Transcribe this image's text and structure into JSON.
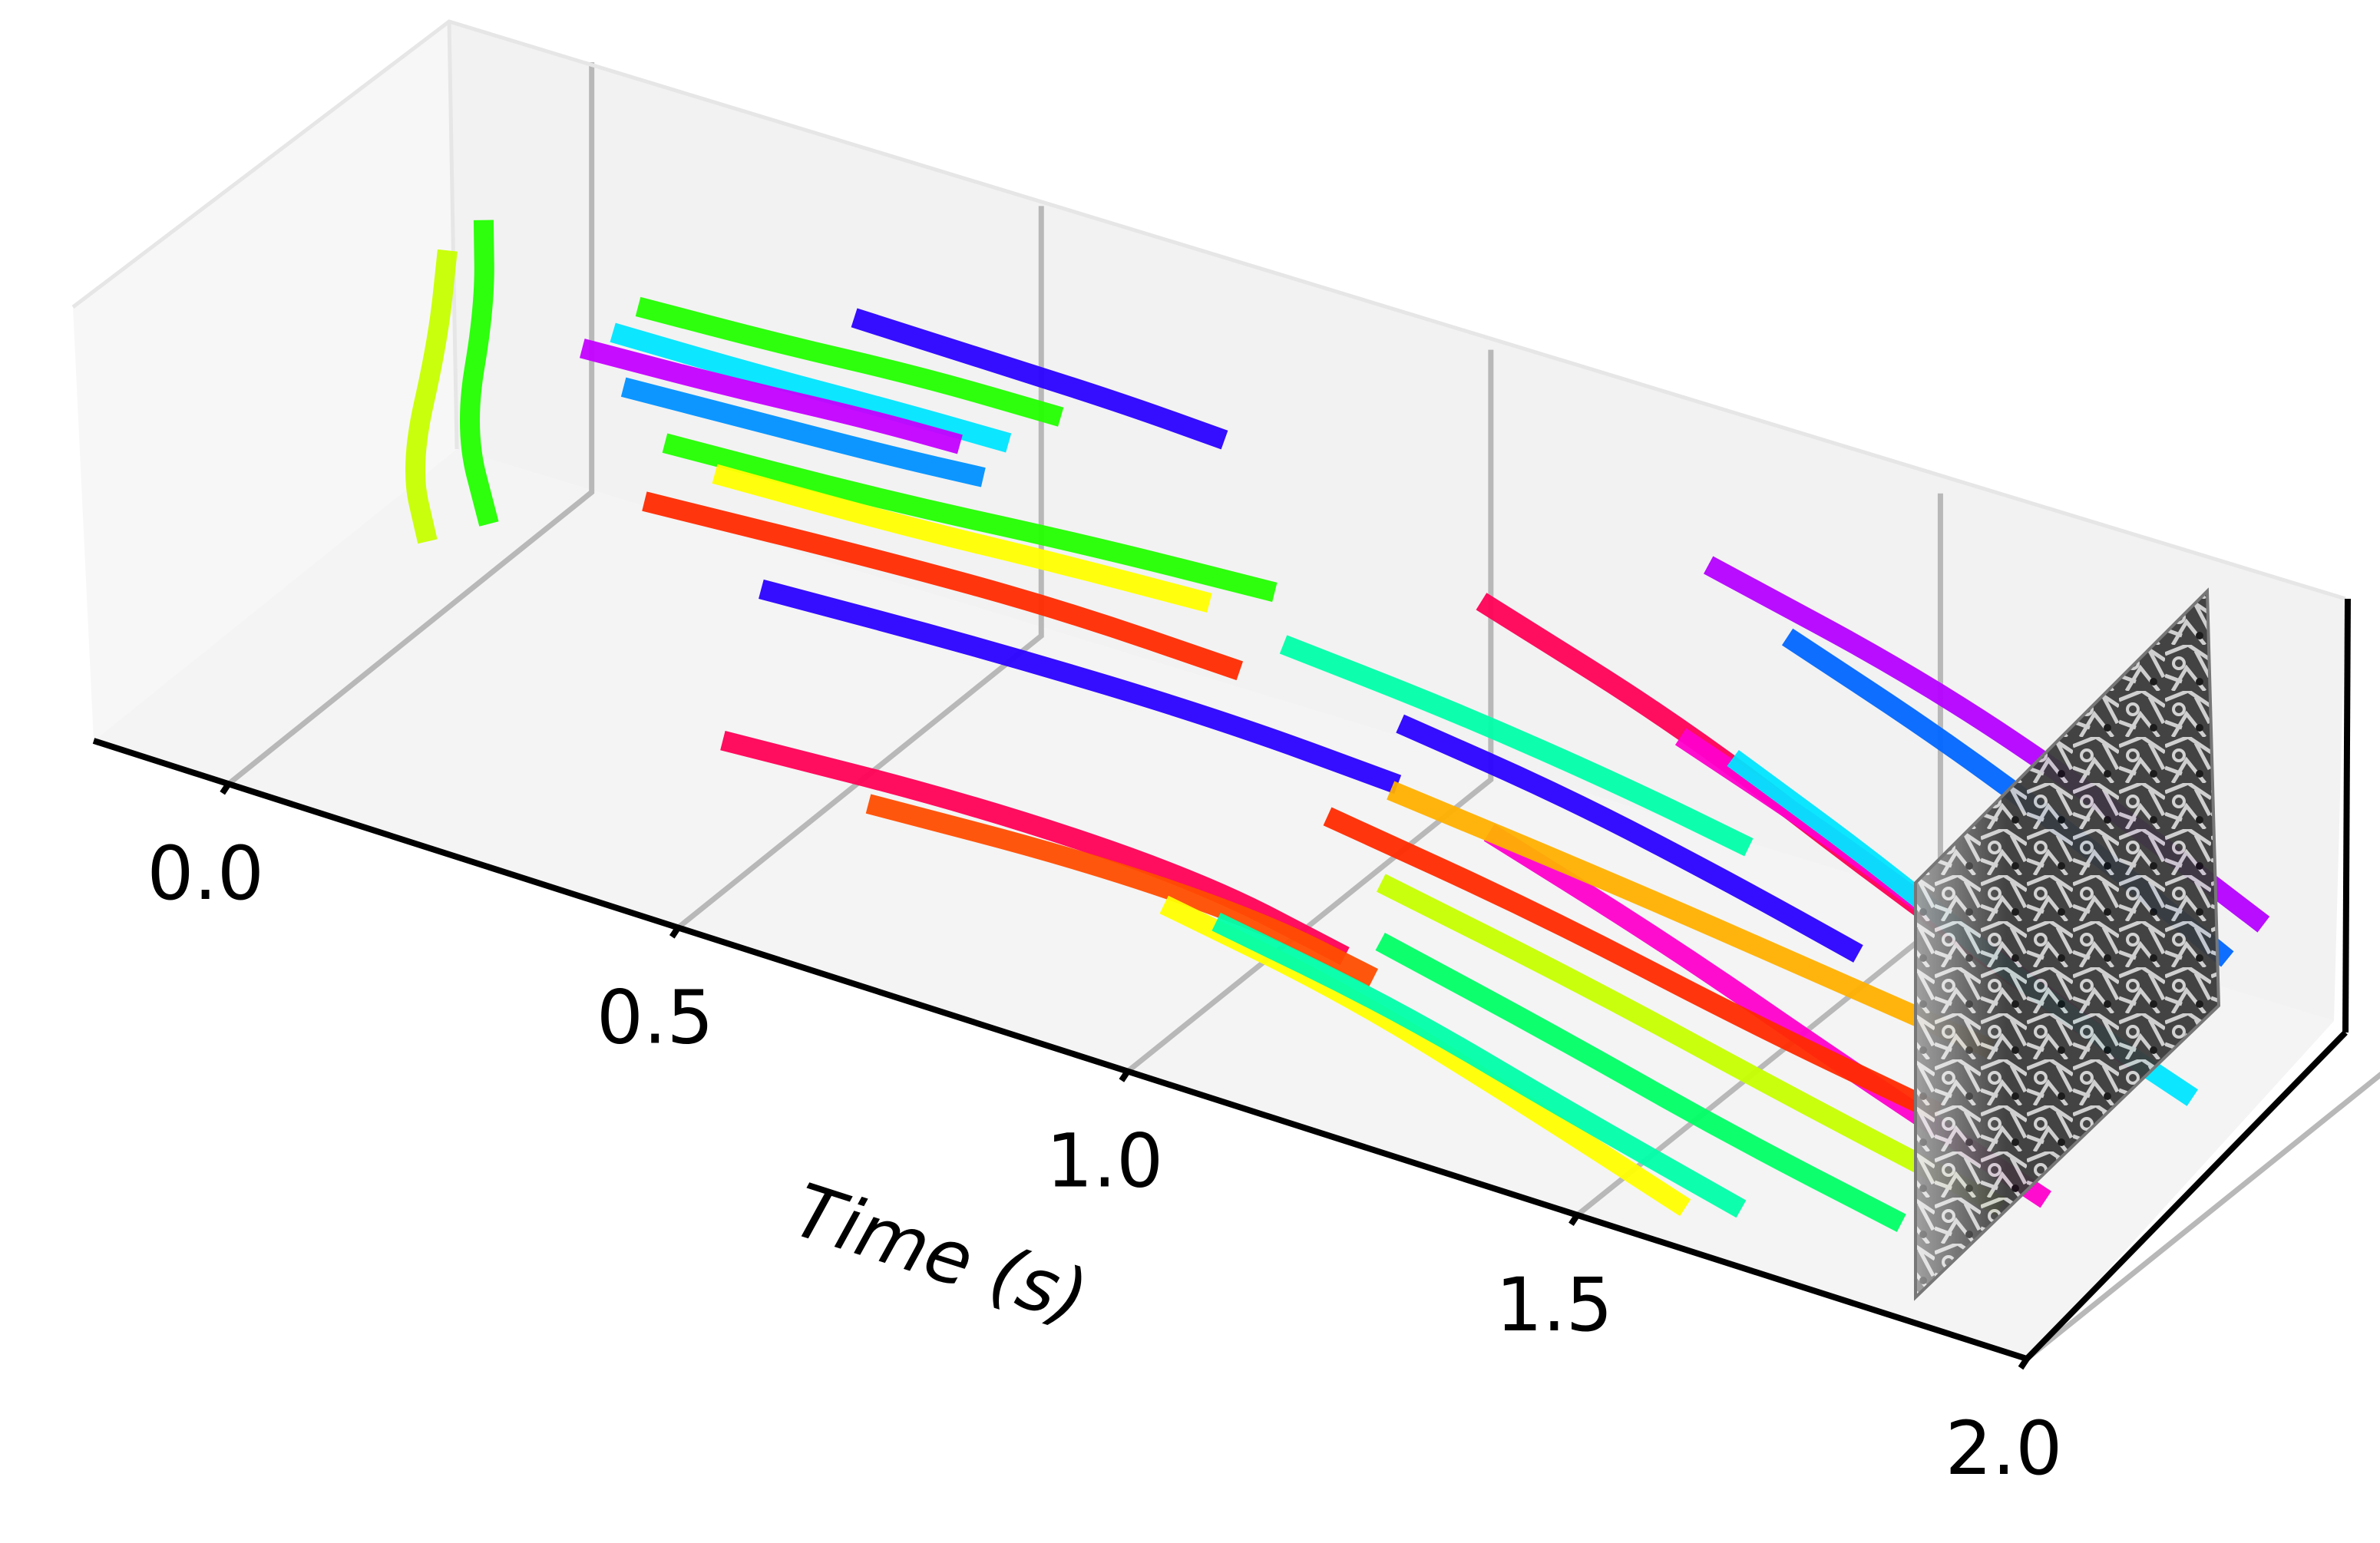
{
  "chart_data": {
    "type": "3d-line",
    "title": "",
    "xlabel": "Time (s)",
    "ylabel": "",
    "zlabel": "",
    "x_ticks": [
      "0.0",
      "0.5",
      "1.0",
      "1.5",
      "2.0"
    ],
    "xlim": [
      -0.15,
      2.0
    ],
    "ylim": [
      0,
      1
    ],
    "zlim": [
      0,
      1
    ],
    "grid": true,
    "legend": "none",
    "end_frame_image": "grayscale event frame at t = 2.0",
    "series": [
      {
        "color": "#c6ff00",
        "t": [
          -0.12,
          -0.05,
          0.02,
          0.08
        ],
        "y": [
          0.9,
          0.7,
          0.45,
          0.35
        ],
        "z": [
          0.55,
          0.52,
          0.45,
          0.38
        ]
      },
      {
        "color": "#22ff00",
        "t": [
          -0.1,
          -0.03,
          0.04,
          0.12
        ],
        "y": [
          0.95,
          0.78,
          0.55,
          0.42
        ],
        "z": [
          0.6,
          0.56,
          0.48,
          0.4
        ]
      },
      {
        "color": "#2a00ff",
        "t": [
          0.3,
          0.45,
          0.6,
          0.72
        ],
        "y": [
          0.98,
          0.98,
          0.97,
          0.96
        ],
        "z": [
          0.62,
          0.62,
          0.63,
          0.63
        ]
      },
      {
        "color": "#22ff00",
        "t": [
          0.1,
          0.25,
          0.4,
          0.55
        ],
        "y": [
          0.88,
          0.9,
          0.92,
          0.93
        ],
        "z": [
          0.58,
          0.58,
          0.59,
          0.59
        ]
      },
      {
        "color": "#00e5ff",
        "t": [
          0.08,
          0.22,
          0.38,
          0.5
        ],
        "y": [
          0.86,
          0.88,
          0.9,
          0.91
        ],
        "z": [
          0.52,
          0.51,
          0.51,
          0.51
        ]
      },
      {
        "color": "#c400ff",
        "t": [
          0.05,
          0.2,
          0.35,
          0.45
        ],
        "y": [
          0.85,
          0.87,
          0.89,
          0.9
        ],
        "z": [
          0.47,
          0.47,
          0.48,
          0.48
        ]
      },
      {
        "color": "#0090ff",
        "t": [
          0.1,
          0.24,
          0.38,
          0.48
        ],
        "y": [
          0.84,
          0.86,
          0.88,
          0.89
        ],
        "z": [
          0.42,
          0.42,
          0.42,
          0.43
        ]
      },
      {
        "color": "#22ff00",
        "t": [
          0.15,
          0.38,
          0.6,
          0.8
        ],
        "y": [
          0.83,
          0.85,
          0.88,
          0.9
        ],
        "z": [
          0.33,
          0.34,
          0.36,
          0.37
        ]
      },
      {
        "color": "#ffff00",
        "t": [
          0.25,
          0.45,
          0.62,
          0.78
        ],
        "y": [
          0.72,
          0.74,
          0.76,
          0.77
        ],
        "z": [
          0.4,
          0.4,
          0.41,
          0.42
        ]
      },
      {
        "color": "#ff2a00",
        "t": [
          0.2,
          0.45,
          0.65,
          0.85
        ],
        "y": [
          0.65,
          0.67,
          0.68,
          0.68
        ],
        "z": [
          0.35,
          0.37,
          0.38,
          0.37
        ]
      },
      {
        "color": "#2a00ff",
        "t": [
          0.35,
          0.6,
          0.85,
          1.05
        ],
        "y": [
          0.6,
          0.62,
          0.63,
          0.62
        ],
        "z": [
          0.28,
          0.29,
          0.29,
          0.28
        ]
      },
      {
        "color": "#ff0055",
        "t": [
          0.38,
          0.65,
          0.9,
          1.08
        ],
        "y": [
          0.42,
          0.45,
          0.45,
          0.4
        ],
        "z": [
          0.07,
          0.08,
          0.07,
          0.05
        ]
      },
      {
        "color": "#ff4d00",
        "t": [
          0.55,
          0.78,
          0.98,
          1.12
        ],
        "y": [
          0.4,
          0.42,
          0.42,
          0.38
        ],
        "z": [
          0.05,
          0.06,
          0.05,
          0.04
        ]
      },
      {
        "color": "#b400ff",
        "t": [
          1.25,
          1.5,
          1.72,
          1.92
        ],
        "y": [
          0.98,
          0.95,
          0.9,
          0.85
        ],
        "z": [
          0.68,
          0.6,
          0.5,
          0.38
        ]
      },
      {
        "color": "#0066ff",
        "t": [
          1.35,
          1.55,
          1.75,
          1.9
        ],
        "y": [
          0.95,
          0.9,
          0.84,
          0.8
        ],
        "z": [
          0.6,
          0.52,
          0.42,
          0.32
        ]
      },
      {
        "color": "#ff0055",
        "t": [
          1.05,
          1.3,
          1.55,
          1.8
        ],
        "y": [
          0.85,
          0.8,
          0.72,
          0.65
        ],
        "z": [
          0.55,
          0.45,
          0.32,
          0.2
        ]
      },
      {
        "color": "#00ffaa",
        "t": [
          0.85,
          1.05,
          1.25,
          1.4
        ],
        "y": [
          0.8,
          0.78,
          0.75,
          0.72
        ],
        "z": [
          0.35,
          0.34,
          0.32,
          0.3
        ]
      },
      {
        "color": "#2a00ff",
        "t": [
          1.0,
          1.2,
          1.4,
          1.55
        ],
        "y": [
          0.75,
          0.72,
          0.68,
          0.65
        ],
        "z": [
          0.3,
          0.28,
          0.24,
          0.2
        ]
      },
      {
        "color": "#ff00cc",
        "t": [
          1.3,
          1.5,
          1.7,
          1.88
        ],
        "y": [
          0.78,
          0.72,
          0.66,
          0.6
        ],
        "z": [
          0.45,
          0.38,
          0.28,
          0.2
        ]
      },
      {
        "color": "#00e5ff",
        "t": [
          1.35,
          1.55,
          1.75,
          1.95
        ],
        "y": [
          0.8,
          0.72,
          0.64,
          0.58
        ],
        "z": [
          0.42,
          0.35,
          0.25,
          0.18
        ]
      },
      {
        "color": "#ffff00",
        "t": [
          1.0,
          1.2,
          1.4,
          1.6
        ],
        "y": [
          0.1,
          0.1,
          0.08,
          0.05
        ],
        "z": [
          0.32,
          0.25,
          0.15,
          0.05
        ]
      },
      {
        "color": "#00ffaa",
        "t": [
          1.05,
          1.25,
          1.45,
          1.65
        ],
        "y": [
          0.12,
          0.12,
          0.1,
          0.08
        ],
        "z": [
          0.3,
          0.23,
          0.14,
          0.06
        ]
      },
      {
        "color": "#00ff66",
        "t": [
          1.2,
          1.4,
          1.6,
          1.8
        ],
        "y": [
          0.2,
          0.19,
          0.17,
          0.15
        ],
        "z": [
          0.3,
          0.22,
          0.14,
          0.08
        ]
      },
      {
        "color": "#ff00cc",
        "t": [
          1.2,
          1.42,
          1.65,
          1.9
        ],
        "y": [
          0.5,
          0.45,
          0.38,
          0.3
        ],
        "z": [
          0.35,
          0.27,
          0.18,
          0.1
        ]
      },
      {
        "color": "#ffb000",
        "t": [
          1.05,
          1.3,
          1.55,
          1.75
        ],
        "y": [
          0.6,
          0.58,
          0.55,
          0.52
        ],
        "z": [
          0.28,
          0.25,
          0.22,
          0.2
        ]
      },
      {
        "color": "#ff2a00",
        "t": [
          1.0,
          1.25,
          1.5,
          1.72
        ],
        "y": [
          0.55,
          0.52,
          0.48,
          0.45
        ],
        "z": [
          0.22,
          0.18,
          0.12,
          0.08
        ]
      },
      {
        "color": "#c6ff00",
        "t": [
          1.1,
          1.35,
          1.6,
          1.85
        ],
        "y": [
          0.45,
          0.4,
          0.35,
          0.3
        ],
        "z": [
          0.2,
          0.16,
          0.1,
          0.05
        ]
      }
    ]
  }
}
